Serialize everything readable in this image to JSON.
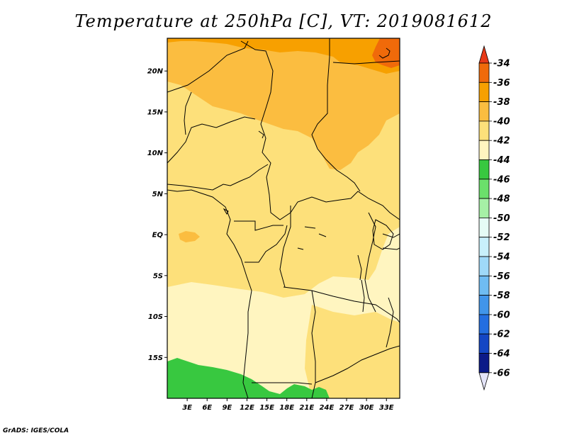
{
  "title": "Temperature at 250hPa [C], VT: 2019081612",
  "footer": "GrADS: IGES/COLA",
  "map": {
    "lat_labels": [
      "20N",
      "15N",
      "10N",
      "5N",
      "EQ",
      "5S",
      "10S",
      "15S"
    ],
    "lon_labels": [
      "3E",
      "6E",
      "9E",
      "12E",
      "15E",
      "18E",
      "21E",
      "24E",
      "27E",
      "30E",
      "33E"
    ],
    "lat_values": [
      20,
      15,
      10,
      5,
      0,
      -5,
      -10,
      -15
    ],
    "lon_values": [
      3,
      6,
      9,
      12,
      15,
      18,
      21,
      24,
      27,
      30,
      33
    ],
    "lon_range": [
      0,
      35
    ],
    "lat_range": [
      -20,
      24
    ]
  },
  "colorbar": {
    "levels": [
      "-34",
      "-36",
      "-38",
      "-40",
      "-42",
      "-44",
      "-46",
      "-48",
      "-50",
      "-52",
      "-54",
      "-56",
      "-58",
      "-60",
      "-62",
      "-64",
      "-66"
    ],
    "colors": [
      "#e83a18",
      "#f06a0a",
      "#f7a000",
      "#fbbd40",
      "#fde07a",
      "#fff5c0",
      "#38c840",
      "#6be06b",
      "#a6f0a6",
      "#e6fcf5",
      "#c8f0fb",
      "#9fd9f8",
      "#6fbcf2",
      "#4195ea",
      "#246ee0",
      "#1446c4",
      "#0c1a88",
      "#e4e4f8"
    ]
  },
  "legend_colors": {
    "c36": "#f7a000",
    "c38": "#fbbd40",
    "c40": "#fde07a",
    "c42": "#fff5c0",
    "c44": "#38c840",
    "c34": "#f06a0a"
  }
}
